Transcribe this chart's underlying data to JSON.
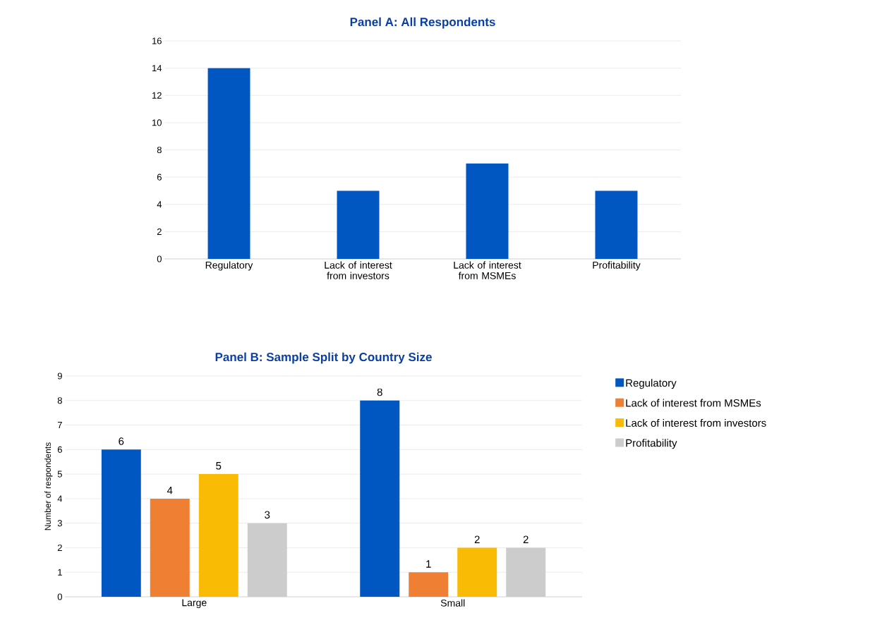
{
  "chart_data": [
    {
      "type": "bar",
      "title": "Panel A: All Respondents",
      "categories": [
        "Regulatory",
        "Lack of interest from investors",
        "Lack of interest from MSMEs",
        "Profitability"
      ],
      "values": [
        14,
        5,
        7,
        5
      ],
      "color": "#0057c2",
      "ylim": [
        0,
        16
      ],
      "yticks": [
        0,
        2,
        4,
        6,
        8,
        10,
        12,
        14,
        16
      ],
      "grid": "y"
    },
    {
      "type": "bar",
      "title": "Panel B: Sample Split by Country Size",
      "ylabel": "Number of respondents",
      "categories": [
        "Large",
        "Small"
      ],
      "series": [
        {
          "name": "Regulatory",
          "color": "#0057c2",
          "values": [
            6,
            8
          ]
        },
        {
          "name": "Lack of interest from MSMEs",
          "color": "#ee7f33",
          "values": [
            4,
            1
          ]
        },
        {
          "name": "Lack of interest from investors",
          "color": "#f9bb04",
          "values": [
            5,
            2
          ]
        },
        {
          "name": "Profitability",
          "color": "#cccccc",
          "values": [
            3,
            2
          ]
        }
      ],
      "ylim": [
        0,
        9
      ],
      "yticks": [
        0,
        1,
        2,
        3,
        4,
        5,
        6,
        7,
        8,
        9
      ],
      "grid": "y",
      "legend": "right",
      "data_labels": true
    }
  ]
}
